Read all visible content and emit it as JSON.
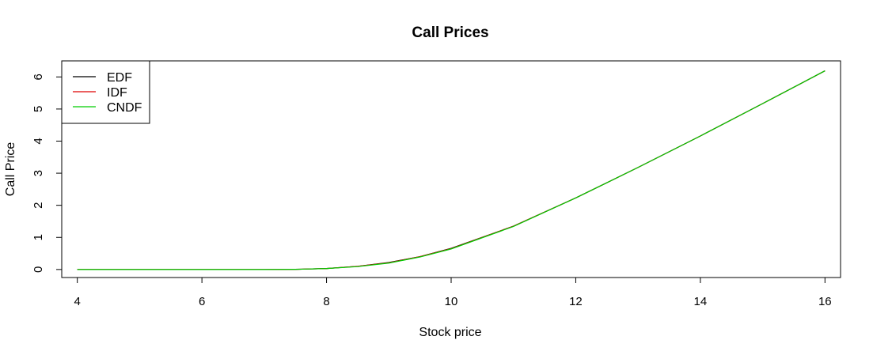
{
  "chart_data": {
    "type": "line",
    "title": "Call Prices",
    "xlabel": "Stock price",
    "ylabel": "Call Price",
    "xlim": [
      3.75,
      16.25
    ],
    "ylim": [
      -0.25,
      6.5
    ],
    "x_ticks": [
      4,
      6,
      8,
      10,
      12,
      14,
      16
    ],
    "y_ticks": [
      0,
      1,
      2,
      3,
      4,
      5,
      6
    ],
    "legend_position": "top-left",
    "x": [
      4,
      5,
      6,
      7,
      7.5,
      8,
      8.5,
      9,
      9.5,
      10,
      11,
      12,
      13,
      14,
      15,
      16
    ],
    "series": [
      {
        "name": "EDF",
        "color": "#000000",
        "values": [
          0,
          0,
          0,
          0,
          0.005,
          0.03,
          0.1,
          0.22,
          0.4,
          0.66,
          1.35,
          2.23,
          3.18,
          4.16,
          5.17,
          6.19
        ]
      },
      {
        "name": "IDF",
        "color": "#DF0000",
        "values": [
          0,
          0,
          0,
          0,
          0.005,
          0.03,
          0.1,
          0.21,
          0.4,
          0.65,
          1.35,
          2.23,
          3.18,
          4.16,
          5.17,
          6.19
        ]
      },
      {
        "name": "CNDF",
        "color": "#00CD00",
        "values": [
          0,
          0,
          0,
          0,
          0.005,
          0.03,
          0.09,
          0.2,
          0.39,
          0.64,
          1.34,
          2.23,
          3.18,
          4.16,
          5.17,
          6.19
        ]
      }
    ]
  }
}
